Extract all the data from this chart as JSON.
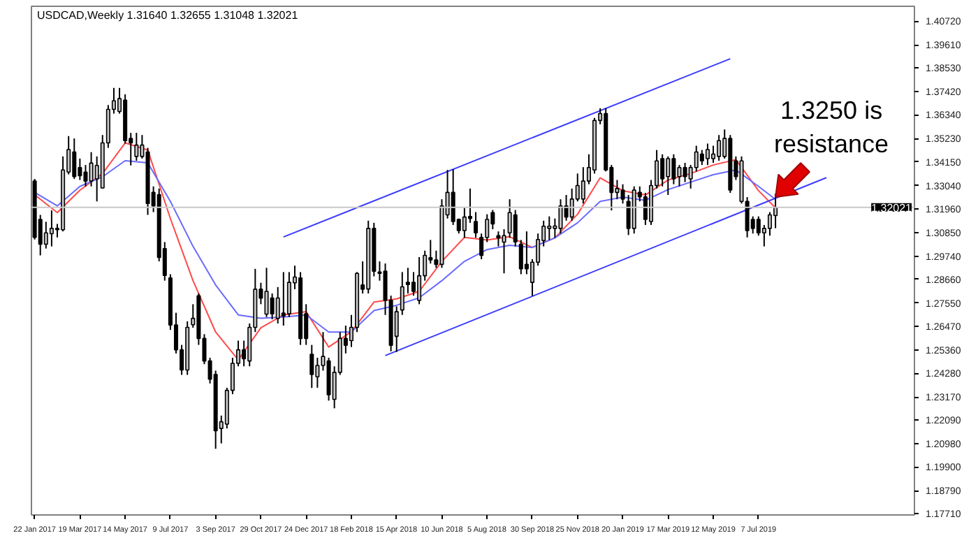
{
  "chart_data": {
    "type": "candlestick",
    "title": "USDCAD,Weekly  1.31640 1.32655 1.31048 1.32021",
    "x": [
      "2017-01-22",
      "2017-01-29",
      "2017-02-05",
      "2017-02-12",
      "2017-02-19",
      "2017-02-26",
      "2017-03-05",
      "2017-03-12",
      "2017-03-19",
      "2017-03-26",
      "2017-04-02",
      "2017-04-09",
      "2017-04-16",
      "2017-04-23",
      "2017-04-30",
      "2017-05-07",
      "2017-05-14",
      "2017-05-21",
      "2017-05-28",
      "2017-06-04",
      "2017-06-11",
      "2017-06-18",
      "2017-06-25",
      "2017-07-02",
      "2017-07-09",
      "2017-07-16",
      "2017-07-23",
      "2017-07-30",
      "2017-08-06",
      "2017-08-13",
      "2017-08-20",
      "2017-08-27",
      "2017-09-03",
      "2017-09-10",
      "2017-09-17",
      "2017-09-24",
      "2017-10-01",
      "2017-10-08",
      "2017-10-15",
      "2017-10-22",
      "2017-10-29",
      "2017-11-05",
      "2017-11-12",
      "2017-11-19",
      "2017-11-26",
      "2017-12-03",
      "2017-12-10",
      "2017-12-17",
      "2017-12-24",
      "2017-12-31",
      "2018-01-07",
      "2018-01-14",
      "2018-01-21",
      "2018-01-28",
      "2018-02-04",
      "2018-02-11",
      "2018-02-18",
      "2018-02-25",
      "2018-03-04",
      "2018-03-11",
      "2018-03-18",
      "2018-03-25",
      "2018-04-01",
      "2018-04-08",
      "2018-04-15",
      "2018-04-22",
      "2018-04-29",
      "2018-05-06",
      "2018-05-13",
      "2018-05-20",
      "2018-05-27",
      "2018-06-03",
      "2018-06-10",
      "2018-06-17",
      "2018-06-24",
      "2018-07-01",
      "2018-07-08",
      "2018-07-15",
      "2018-07-22",
      "2018-07-29",
      "2018-08-05",
      "2018-08-12",
      "2018-08-19",
      "2018-08-26",
      "2018-09-02",
      "2018-09-09",
      "2018-09-16",
      "2018-09-23",
      "2018-09-30",
      "2018-10-07",
      "2018-10-14",
      "2018-10-21",
      "2018-10-28",
      "2018-11-04",
      "2018-11-11",
      "2018-11-18",
      "2018-11-25",
      "2018-12-02",
      "2018-12-09",
      "2018-12-16",
      "2018-12-23",
      "2018-12-30",
      "2019-01-06",
      "2019-01-13",
      "2019-01-20",
      "2019-01-27",
      "2019-02-03",
      "2019-02-10",
      "2019-02-17",
      "2019-02-24",
      "2019-03-03",
      "2019-03-10",
      "2019-03-17",
      "2019-03-24",
      "2019-03-31",
      "2019-04-07",
      "2019-04-14",
      "2019-04-21",
      "2019-04-28",
      "2019-05-05",
      "2019-05-12",
      "2019-05-19",
      "2019-05-26",
      "2019-06-02",
      "2019-06-09",
      "2019-06-16",
      "2019-06-23",
      "2019-06-30",
      "2019-07-07",
      "2019-07-14",
      "2019-07-21",
      "2019-07-28"
    ],
    "ohlc": [
      [
        1.3325,
        1.3335,
        1.3052,
        1.3062
      ],
      [
        1.3146,
        1.3167,
        1.2978,
        1.303
      ],
      [
        1.303,
        1.3135,
        1.301,
        1.3083
      ],
      [
        1.3079,
        1.3188,
        1.302,
        1.3104
      ],
      [
        1.3104,
        1.3125,
        1.3062,
        1.3098
      ],
      [
        1.3098,
        1.344,
        1.309,
        1.3377
      ],
      [
        1.3367,
        1.3535,
        1.3356,
        1.3472
      ],
      [
        1.3461,
        1.3524,
        1.3335,
        1.3346
      ],
      [
        1.3388,
        1.343,
        1.333,
        1.335
      ],
      [
        1.3367,
        1.34,
        1.33,
        1.3325
      ],
      [
        1.3325,
        1.346,
        1.33,
        1.3409
      ],
      [
        1.3335,
        1.344,
        1.323,
        1.3398
      ],
      [
        1.3293,
        1.354,
        1.329,
        1.3503
      ],
      [
        1.3503,
        1.368,
        1.348,
        1.366
      ],
      [
        1.366,
        1.376,
        1.364,
        1.37
      ],
      [
        1.365,
        1.376,
        1.364,
        1.371
      ],
      [
        1.3703,
        1.373,
        1.35,
        1.3514
      ],
      [
        1.3524,
        1.355,
        1.3398,
        1.3503
      ],
      [
        1.344,
        1.355,
        1.342,
        1.3493
      ],
      [
        1.344,
        1.354,
        1.343,
        1.3493
      ],
      [
        1.3461,
        1.348,
        1.3167,
        1.322
      ],
      [
        1.3272,
        1.33,
        1.318,
        1.3209
      ],
      [
        1.3262,
        1.329,
        1.295,
        1.2968
      ],
      [
        1.301,
        1.304,
        1.286,
        1.2884
      ],
      [
        1.2873,
        1.289,
        1.263,
        1.2653
      ],
      [
        1.2653,
        1.271,
        1.252,
        1.2537
      ],
      [
        1.2537,
        1.256,
        1.242,
        1.2443
      ],
      [
        1.2443,
        1.267,
        1.242,
        1.2642
      ],
      [
        1.2654,
        1.275,
        1.264,
        1.2684
      ],
      [
        1.2789,
        1.28,
        1.256,
        1.259
      ],
      [
        1.259,
        1.261,
        1.247,
        1.2485
      ],
      [
        1.2485,
        1.25,
        1.238,
        1.24
      ],
      [
        1.2422,
        1.244,
        1.2075,
        1.2159
      ],
      [
        1.217,
        1.223,
        1.21,
        1.2201
      ],
      [
        1.219,
        1.236,
        1.217,
        1.2348
      ],
      [
        1.2348,
        1.25,
        1.233,
        1.2474
      ],
      [
        1.2474,
        1.258,
        1.246,
        1.2537
      ],
      [
        1.2537,
        1.258,
        1.246,
        1.2495
      ],
      [
        1.2485,
        1.266,
        1.246,
        1.2642
      ],
      [
        1.2642,
        1.2915,
        1.262,
        1.282
      ],
      [
        1.282,
        1.285,
        1.275,
        1.2778
      ],
      [
        1.2704,
        1.292,
        1.269,
        1.281
      ],
      [
        1.2779,
        1.28,
        1.268,
        1.2705
      ],
      [
        1.2684,
        1.283,
        1.266,
        1.2779
      ],
      [
        1.2709,
        1.29,
        1.265,
        1.2695
      ],
      [
        1.2705,
        1.29,
        1.269,
        1.2852
      ],
      [
        1.285,
        1.293,
        1.282,
        1.2877
      ],
      [
        1.2873,
        1.29,
        1.256,
        1.259
      ],
      [
        1.2705,
        1.275,
        1.256,
        1.259
      ],
      [
        1.2516,
        1.256,
        1.2359,
        1.2422
      ],
      [
        1.2411,
        1.25,
        1.236,
        1.2464
      ],
      [
        1.2464,
        1.262,
        1.244,
        1.2506
      ],
      [
        1.2485,
        1.25,
        1.23,
        1.2327
      ],
      [
        1.2306,
        1.246,
        1.2264,
        1.2432
      ],
      [
        1.2432,
        1.262,
        1.242,
        1.259
      ],
      [
        1.259,
        1.265,
        1.252,
        1.2558
      ],
      [
        1.258,
        1.27,
        1.255,
        1.2642
      ],
      [
        1.2642,
        1.29,
        1.262,
        1.2894
      ],
      [
        1.284,
        1.295,
        1.28,
        1.282
      ],
      [
        1.2821,
        1.314,
        1.28,
        1.3104
      ],
      [
        1.3104,
        1.313,
        1.288,
        1.2904
      ],
      [
        1.29,
        1.295,
        1.286,
        1.2894
      ],
      [
        1.2904,
        1.294,
        1.27,
        1.2768
      ],
      [
        1.2768,
        1.279,
        1.253,
        1.2558
      ],
      [
        1.26,
        1.274,
        1.2527,
        1.2715
      ],
      [
        1.2723,
        1.29,
        1.27,
        1.2831
      ],
      [
        1.2852,
        1.292,
        1.28,
        1.2842
      ],
      [
        1.2852,
        1.29,
        1.279,
        1.281
      ],
      [
        1.2768,
        1.297,
        1.275,
        1.2883
      ],
      [
        1.2883,
        1.3,
        1.286,
        1.2978
      ],
      [
        1.2967,
        1.305,
        1.294,
        1.2957
      ],
      [
        1.2957,
        1.3,
        1.292,
        1.2936
      ],
      [
        1.2936,
        1.324,
        1.292,
        1.3209
      ],
      [
        1.3167,
        1.3377,
        1.315,
        1.3272
      ],
      [
        1.3272,
        1.338,
        1.312,
        1.3136
      ],
      [
        1.3146,
        1.315,
        1.308,
        1.3094
      ],
      [
        1.3094,
        1.32,
        1.306,
        1.3157
      ],
      [
        1.316,
        1.329,
        1.313,
        1.315
      ],
      [
        1.3136,
        1.318,
        1.306,
        1.3083
      ],
      [
        1.3062,
        1.308,
        1.296,
        1.2978
      ],
      [
        1.3062,
        1.317,
        1.304,
        1.3146
      ],
      [
        1.3178,
        1.319,
        1.31,
        1.3125
      ],
      [
        1.307,
        1.309,
        1.302,
        1.306
      ],
      [
        1.304,
        1.31,
        1.2894,
        1.307
      ],
      [
        1.3083,
        1.324,
        1.306,
        1.3178
      ],
      [
        1.3167,
        1.319,
        1.302,
        1.3041
      ],
      [
        1.303,
        1.305,
        1.289,
        1.2915
      ],
      [
        1.2936,
        1.309,
        1.289,
        1.2915
      ],
      [
        1.2852,
        1.296,
        1.2789,
        1.2946
      ],
      [
        1.2946,
        1.308,
        1.293,
        1.3052
      ],
      [
        1.3047,
        1.314,
        1.302,
        1.3114
      ],
      [
        1.3104,
        1.316,
        1.305,
        1.3114
      ],
      [
        1.3104,
        1.315,
        1.306,
        1.3115
      ],
      [
        1.3104,
        1.324,
        1.308,
        1.3209
      ],
      [
        1.3209,
        1.326,
        1.314,
        1.3157
      ],
      [
        1.3157,
        1.329,
        1.314,
        1.3241
      ],
      [
        1.3241,
        1.336,
        1.323,
        1.3304
      ],
      [
        1.3241,
        1.339,
        1.322,
        1.3325
      ],
      [
        1.3325,
        1.345,
        1.331,
        1.3388
      ],
      [
        1.3377,
        1.362,
        1.336,
        1.3608
      ],
      [
        1.3608,
        1.3665,
        1.359,
        1.364
      ],
      [
        1.364,
        1.3665,
        1.337,
        1.3377
      ],
      [
        1.3388,
        1.34,
        1.3188,
        1.3272
      ],
      [
        1.3272,
        1.333,
        1.324,
        1.329
      ],
      [
        1.3283,
        1.331,
        1.322,
        1.3241
      ],
      [
        1.323,
        1.326,
        1.3073,
        1.3104
      ],
      [
        1.3104,
        1.33,
        1.308,
        1.3283
      ],
      [
        1.3272,
        1.33,
        1.323,
        1.3251
      ],
      [
        1.3251,
        1.327,
        1.312,
        1.3146
      ],
      [
        1.3136,
        1.333,
        1.312,
        1.3304
      ],
      [
        1.3304,
        1.347,
        1.329,
        1.3419
      ],
      [
        1.343,
        1.345,
        1.33,
        1.3335
      ],
      [
        1.3346,
        1.344,
        1.326,
        1.343
      ],
      [
        1.343,
        1.345,
        1.331,
        1.3335
      ],
      [
        1.3346,
        1.34,
        1.33,
        1.3388
      ],
      [
        1.3388,
        1.341,
        1.332,
        1.3346
      ],
      [
        1.3335,
        1.34,
        1.329,
        1.3388
      ],
      [
        1.3388,
        1.349,
        1.337,
        1.3461
      ],
      [
        1.3451,
        1.347,
        1.34,
        1.3419
      ],
      [
        1.343,
        1.35,
        1.34,
        1.3472
      ],
      [
        1.343,
        1.349,
        1.341,
        1.3451
      ],
      [
        1.344,
        1.354,
        1.342,
        1.3514
      ],
      [
        1.344,
        1.3566,
        1.343,
        1.3524
      ],
      [
        1.3524,
        1.354,
        1.327,
        1.3283
      ],
      [
        1.3419,
        1.344,
        1.333,
        1.3346
      ],
      [
        1.323,
        1.344,
        1.322,
        1.3419
      ],
      [
        1.323,
        1.325,
        1.3062,
        1.3094
      ],
      [
        1.3146,
        1.316,
        1.308,
        1.3104
      ],
      [
        1.3146,
        1.316,
        1.307,
        1.3083
      ],
      [
        1.3083,
        1.312,
        1.302,
        1.3104
      ],
      [
        1.3104,
        1.318,
        1.307,
        1.3167
      ],
      [
        1.3164,
        1.32655,
        1.31048,
        1.32021
      ]
    ],
    "series": [
      {
        "type": "line",
        "color": "#ff4a4a",
        "x": [
          "2017-01-22",
          "2017-02-19",
          "2017-03-19",
          "2017-04-16",
          "2017-05-14",
          "2017-06-11",
          "2017-07-09",
          "2017-08-06",
          "2017-09-03",
          "2017-10-01",
          "2017-10-29",
          "2017-11-26",
          "2017-12-24",
          "2018-01-21",
          "2018-02-18",
          "2018-03-18",
          "2018-04-15",
          "2018-05-13",
          "2018-06-10",
          "2018-07-08",
          "2018-08-05",
          "2018-09-02",
          "2018-09-30",
          "2018-10-28",
          "2018-11-25",
          "2018-12-23",
          "2019-01-20",
          "2019-02-17",
          "2019-03-17",
          "2019-04-14",
          "2019-05-12",
          "2019-06-09",
          "2019-07-07",
          "2019-07-28"
        ],
        "values": [
          1.3261,
          1.3178,
          1.3282,
          1.336,
          1.3503,
          1.347,
          1.315,
          1.286,
          1.262,
          1.249,
          1.264,
          1.27,
          1.2715,
          1.255,
          1.2621,
          1.276,
          1.2775,
          1.281,
          1.295,
          1.3062,
          1.305,
          1.3065,
          1.3015,
          1.306,
          1.317,
          1.334,
          1.328,
          1.326,
          1.333,
          1.336,
          1.34,
          1.3425,
          1.328,
          1.32
        ]
      },
      {
        "type": "line",
        "color": "#6a6aff",
        "x": [
          "2017-01-22",
          "2017-02-19",
          "2017-03-19",
          "2017-04-16",
          "2017-05-14",
          "2017-06-11",
          "2017-07-09",
          "2017-08-06",
          "2017-09-03",
          "2017-10-01",
          "2017-10-29",
          "2017-11-26",
          "2017-12-24",
          "2018-01-21",
          "2018-02-18",
          "2018-03-18",
          "2018-04-15",
          "2018-05-13",
          "2018-06-10",
          "2018-07-08",
          "2018-08-05",
          "2018-09-02",
          "2018-09-30",
          "2018-10-28",
          "2018-11-25",
          "2018-12-23",
          "2019-01-20",
          "2019-02-17",
          "2019-03-17",
          "2019-04-14",
          "2019-05-12",
          "2019-06-09",
          "2019-07-07",
          "2019-07-28"
        ],
        "values": [
          1.3272,
          1.3209,
          1.33,
          1.3345,
          1.342,
          1.341,
          1.323,
          1.302,
          1.284,
          1.27,
          1.2684,
          1.269,
          1.27,
          1.262,
          1.262,
          1.272,
          1.2745,
          1.278,
          1.286,
          1.295,
          1.3005,
          1.3025,
          1.3015,
          1.306,
          1.313,
          1.323,
          1.325,
          1.3235,
          1.3285,
          1.332,
          1.3355,
          1.3377,
          1.33,
          1.324
        ]
      },
      {
        "type": "line",
        "color": "#3b3bff",
        "x": [
          "2017-11-26",
          "2019-06-02"
        ],
        "values": [
          1.3064,
          1.3896
        ]
      },
      {
        "type": "line",
        "color": "#3b3bff",
        "x": [
          "2018-04-01",
          "2019-09-29"
        ],
        "values": [
          1.251,
          1.3341
        ]
      }
    ],
    "xlim": [
      "2017-01-18",
      "2020-01-16"
    ],
    "xticks": [
      {
        "value": "2017-01-22",
        "label": "22 Jan 2017"
      },
      {
        "value": "2017-03-19",
        "label": "19 Mar 2017"
      },
      {
        "value": "2017-05-14",
        "label": "14 May 2017"
      },
      {
        "value": "2017-07-09",
        "label": "9 Jul 2017"
      },
      {
        "value": "2017-09-03",
        "label": "3 Sep 2017"
      },
      {
        "value": "2017-10-29",
        "label": "29 Oct 2017"
      },
      {
        "value": "2017-12-24",
        "label": "24 Dec 2017"
      },
      {
        "value": "2018-02-18",
        "label": "18 Feb 2018"
      },
      {
        "value": "2018-04-15",
        "label": "15 Apr 2018"
      },
      {
        "value": "2018-06-10",
        "label": "10 Jun 2018"
      },
      {
        "value": "2018-08-05",
        "label": "5 Aug 2018"
      },
      {
        "value": "2018-09-30",
        "label": "30 Sep 2018"
      },
      {
        "value": "2018-11-25",
        "label": "25 Nov 2018"
      },
      {
        "value": "2019-01-20",
        "label": "20 Jan 2019"
      },
      {
        "value": "2019-03-17",
        "label": "17 Mar 2019"
      },
      {
        "value": "2019-05-12",
        "label": "12 May 2019"
      },
      {
        "value": "2019-07-07",
        "label": "7 Jul 2019"
      }
    ],
    "ylim": [
      1.1766,
      1.4141
    ],
    "yticks": [
      {
        "value": 1.4072,
        "label": "1.40720"
      },
      {
        "value": 1.3961,
        "label": "1.39610"
      },
      {
        "value": 1.3853,
        "label": "1.38530"
      },
      {
        "value": 1.3742,
        "label": "1.37420"
      },
      {
        "value": 1.3634,
        "label": "1.36340"
      },
      {
        "value": 1.3523,
        "label": "1.35230"
      },
      {
        "value": 1.3415,
        "label": "1.34150"
      },
      {
        "value": 1.3304,
        "label": "1.33040"
      },
      {
        "value": 1.3196,
        "label": "1.31960"
      },
      {
        "value": 1.3085,
        "label": "1.30850"
      },
      {
        "value": 1.2974,
        "label": "1.29740"
      },
      {
        "value": 1.2866,
        "label": "1.28660"
      },
      {
        "value": 1.2755,
        "label": "1.27550"
      },
      {
        "value": 1.2647,
        "label": "1.26470"
      },
      {
        "value": 1.2536,
        "label": "1.25360"
      },
      {
        "value": 1.2428,
        "label": "1.24280"
      },
      {
        "value": 1.2317,
        "label": "1.23170"
      },
      {
        "value": 1.2209,
        "label": "1.22090"
      },
      {
        "value": 1.2098,
        "label": "1.20980"
      },
      {
        "value": 1.199,
        "label": "1.19900"
      },
      {
        "value": 1.1879,
        "label": "1.18790"
      },
      {
        "value": 1.1771,
        "label": "1.17710"
      }
    ],
    "ref_lines": [
      {
        "axis": "y",
        "value": 1.32021,
        "label": "1.32021",
        "color": "#c8c8c8"
      }
    ],
    "annotations": [
      {
        "text": "1.3250 is\nresistance",
        "x": "2019-07-28",
        "y": 1.325
      }
    ]
  }
}
